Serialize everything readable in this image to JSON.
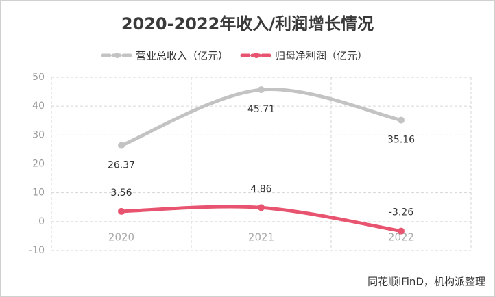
{
  "chart_data": {
    "type": "line",
    "title": "2020-2022年收入/利润增长情况",
    "categories": [
      "2020",
      "2021",
      "2022"
    ],
    "series": [
      {
        "name": "营业总收入（亿元）",
        "color": "#c3c3c3",
        "values": [
          26.37,
          45.71,
          35.16
        ]
      },
      {
        "name": "归母净利润（亿元）",
        "color": "#e8546f",
        "values": [
          3.56,
          4.86,
          -3.26
        ]
      }
    ],
    "ylim": [
      -10,
      50
    ],
    "yticks": [
      -10,
      0,
      10,
      20,
      30,
      40,
      50
    ],
    "grid": true,
    "legend": "top",
    "source": "同花顺iFinD，机构派整理"
  }
}
